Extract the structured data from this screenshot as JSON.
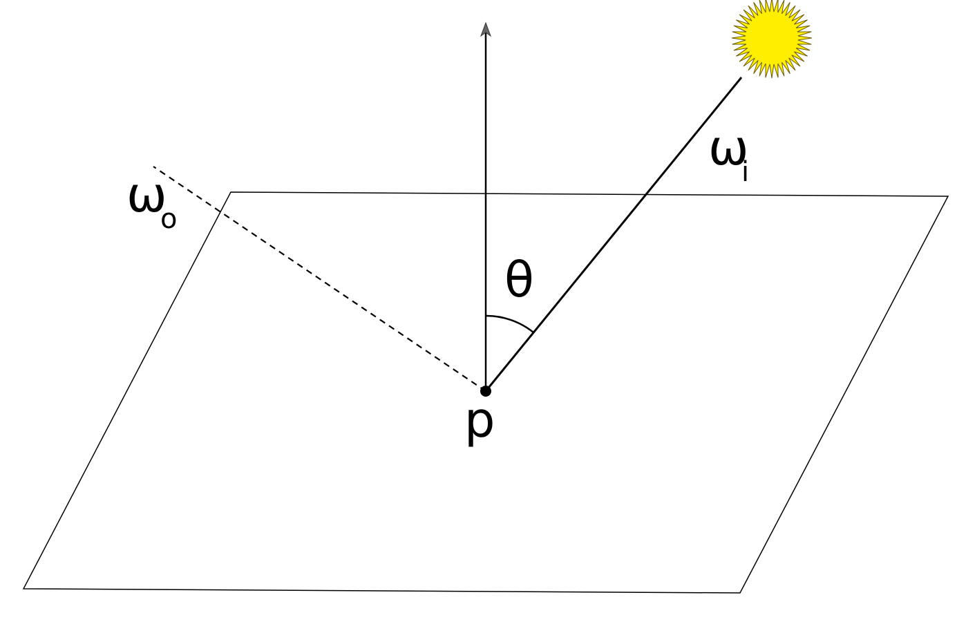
{
  "labels": {
    "omega_o": "ω",
    "omega_o_sub": "o",
    "omega_i": "ω",
    "omega_i_sub": "i",
    "theta": "θ",
    "point": "p"
  },
  "colors": {
    "line": "#000000",
    "sun_fill": "#ffee00",
    "sun_stroke": "#6b5a00",
    "arrow_head": "#666666"
  },
  "icons": {
    "light_source": "sun-icon"
  }
}
